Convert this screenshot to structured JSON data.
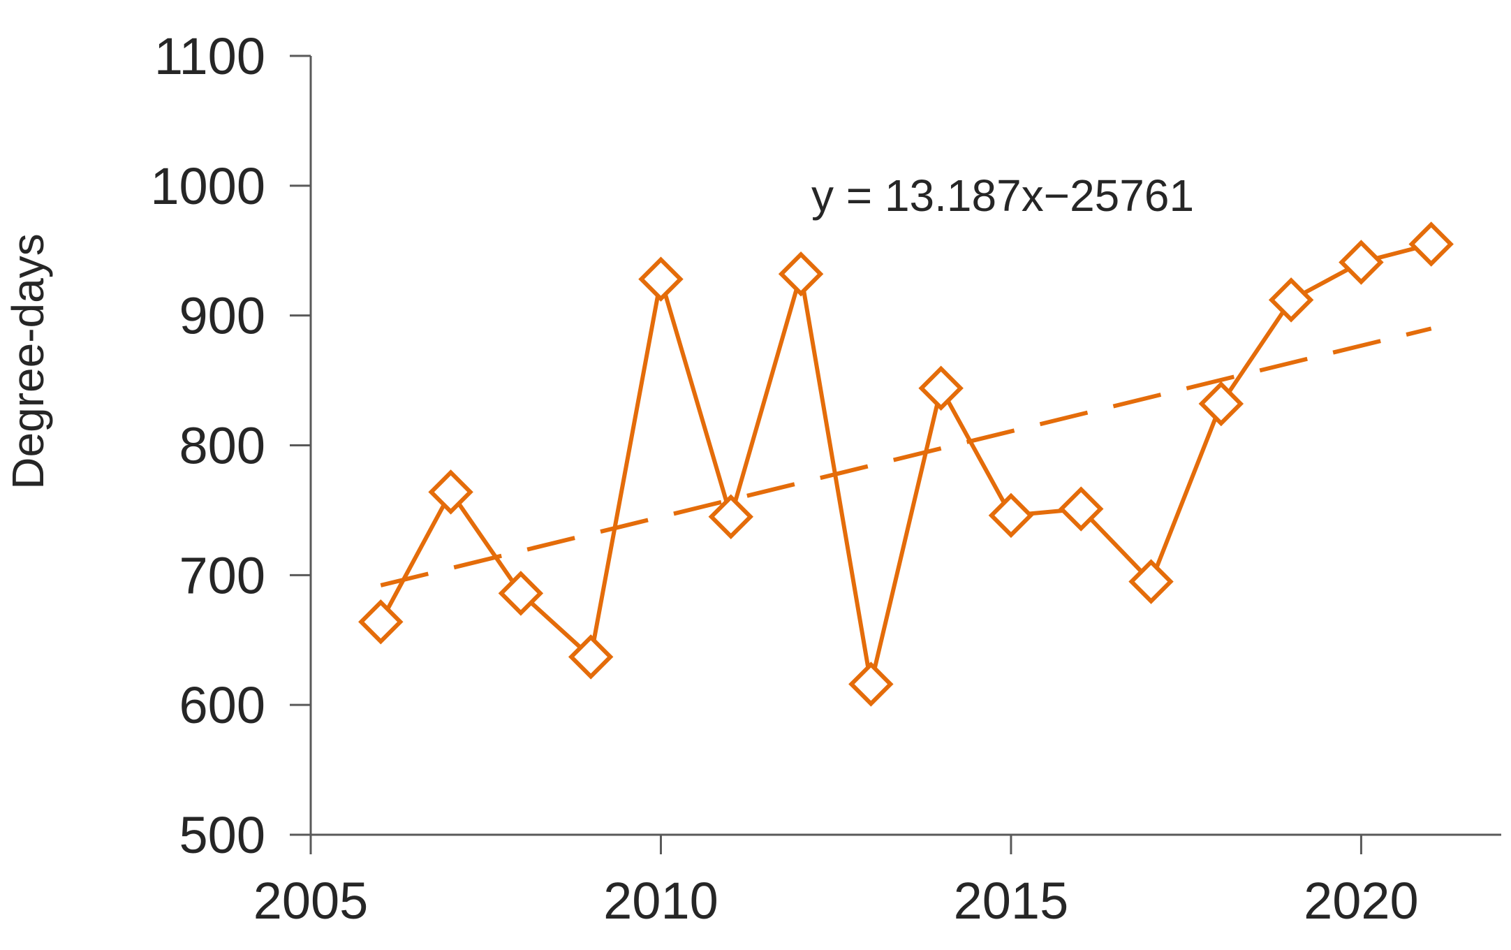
{
  "chart_data": {
    "type": "line",
    "title": "",
    "xlabel": "",
    "ylabel": "Degree-days",
    "xlim": [
      2005,
      2022
    ],
    "ylim": [
      500,
      1100
    ],
    "x_ticks": [
      "2005",
      "2010",
      "2015",
      "2020"
    ],
    "y_ticks": [
      "500",
      "600",
      "700",
      "800",
      "900",
      "1000",
      "1100"
    ],
    "grid": false,
    "legend": "none",
    "series": [
      {
        "marker": "open-diamond",
        "line": "solid",
        "color": "#E46C0A",
        "points": [
          {
            "x": 2006,
            "y": 664
          },
          {
            "x": 2007,
            "y": 764
          },
          {
            "x": 2008,
            "y": 686
          },
          {
            "x": 2009,
            "y": 637
          },
          {
            "x": 2010,
            "y": 928
          },
          {
            "x": 2011,
            "y": 745
          },
          {
            "x": 2012,
            "y": 932
          },
          {
            "x": 2013,
            "y": 616
          },
          {
            "x": 2014,
            "y": 844
          },
          {
            "x": 2015,
            "y": 746
          },
          {
            "x": 2016,
            "y": 751
          },
          {
            "x": 2017,
            "y": 695
          },
          {
            "x": 2018,
            "y": 832
          },
          {
            "x": 2019,
            "y": 912
          },
          {
            "x": 2020,
            "y": 941
          },
          {
            "x": 2021,
            "y": 955
          }
        ]
      }
    ],
    "trendline": {
      "type": "linear",
      "line": "dashed",
      "color": "#E46C0A",
      "slope": 13.187,
      "intercept": -25761,
      "x_range": [
        2006,
        2021
      ],
      "equation_label": "y = 13.187x−25761"
    }
  }
}
